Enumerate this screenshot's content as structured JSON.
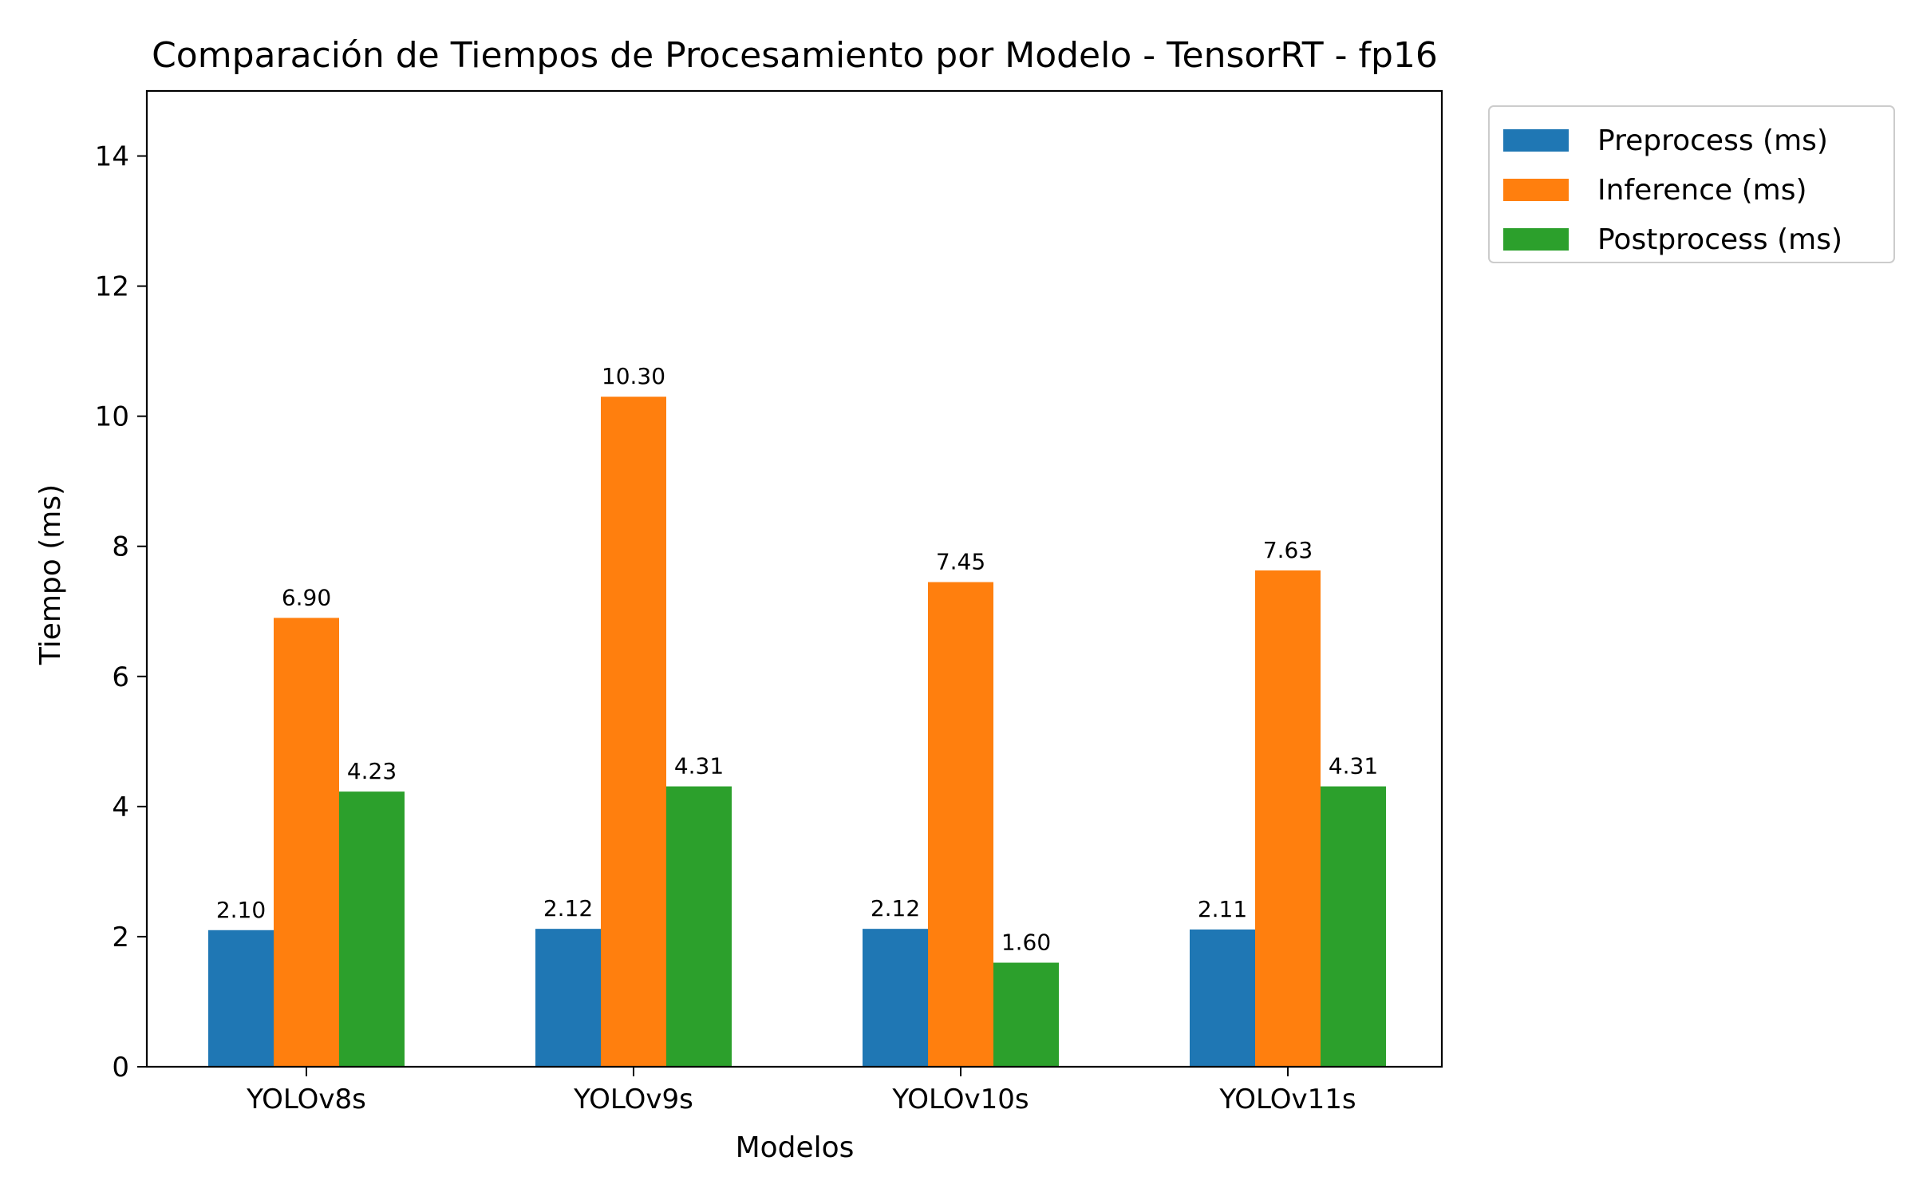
{
  "chart_data": {
    "type": "bar",
    "title": "Comparación de Tiempos de Procesamiento por Modelo - TensorRT - fp16",
    "xlabel": "Modelos",
    "ylabel": "Tiempo (ms)",
    "categories": [
      "YOLOv8s",
      "YOLOv9s",
      "YOLOv10s",
      "YOLOv11s"
    ],
    "series": [
      {
        "name": "Preprocess (ms)",
        "color": "#1f77b4",
        "values": [
          2.1,
          2.12,
          2.12,
          2.11
        ]
      },
      {
        "name": "Inference (ms)",
        "color": "#ff7f0e",
        "values": [
          6.9,
          10.3,
          7.45,
          7.63
        ]
      },
      {
        "name": "Postprocess (ms)",
        "color": "#2ca02c",
        "values": [
          4.23,
          4.31,
          1.6,
          4.31
        ]
      }
    ],
    "ylim": [
      0,
      15
    ],
    "yticks": [
      "0",
      "2",
      "4",
      "6",
      "8",
      "10",
      "12",
      "14"
    ],
    "data_labels": [
      [
        "2.10",
        "2.12",
        "2.12",
        "2.11"
      ],
      [
        "6.90",
        "10.30",
        "7.45",
        "7.63"
      ],
      [
        "4.23",
        "4.31",
        "1.60",
        "4.31"
      ]
    ],
    "legend_position": "outside-top-right",
    "grid": false
  }
}
